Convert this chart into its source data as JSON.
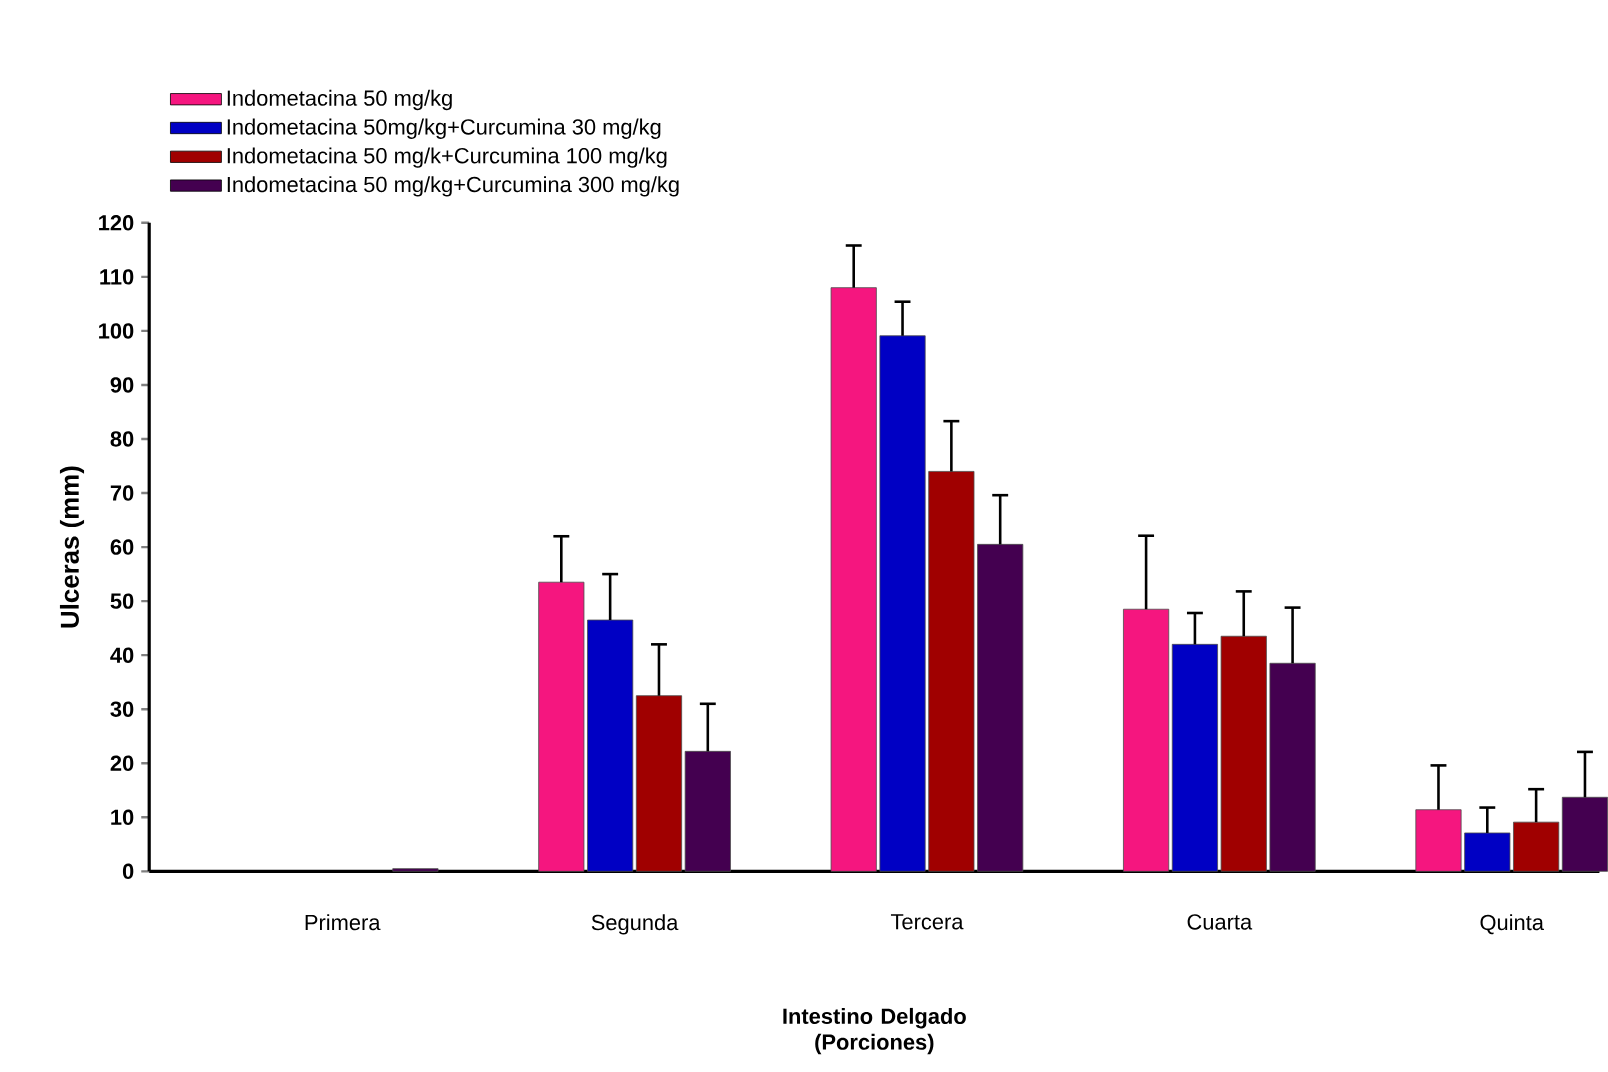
{
  "chart_data": {
    "type": "bar",
    "xlabel": "Intestino Delgado\n(Porciones)",
    "ylabel": "Ulceras (mm)",
    "categories": [
      "Primera",
      "Segunda",
      "Tercera",
      "Cuarta",
      "Quinta"
    ],
    "series": [
      {
        "name": "Indometacina 50 mg/kg",
        "color": "#f5167f",
        "values": [
          null,
          53.5,
          108,
          48.5,
          11.4
        ],
        "errors": [
          null,
          [
            53.5,
            62
          ],
          [
            108,
            115.8
          ],
          [
            48.5,
            62.1
          ],
          [
            11.4,
            19.6
          ]
        ]
      },
      {
        "name": "Indometacina 50mg/kg+Curcumina 30 mg/kg",
        "color": "#0000c4",
        "values": [
          null,
          46.5,
          99.1,
          42,
          7.1
        ],
        "errors": [
          null,
          [
            46.5,
            55
          ],
          [
            99.1,
            105.4
          ],
          [
            42,
            47.8
          ],
          [
            7.1,
            11.8
          ]
        ]
      },
      {
        "name": "Indometacina 50 mg/k+Curcumina 100 mg/kg",
        "color": "#a00000",
        "values": [
          null,
          32.5,
          74,
          43.5,
          9.1
        ],
        "errors": [
          null,
          [
            32.5,
            42
          ],
          [
            74,
            83.3
          ],
          [
            43.5,
            51.8
          ],
          [
            9.1,
            15.2
          ]
        ]
      },
      {
        "name": "Indometacina 50 mg/kg+Curcumina 300 mg/kg",
        "color": "#440050",
        "values": [
          0.5,
          22.2,
          60.5,
          38.5,
          13.7
        ],
        "errors": [
          null,
          [
            22.2,
            31
          ],
          [
            60.5,
            69.6
          ],
          [
            38.5,
            48.8
          ],
          [
            13.7,
            22.1
          ]
        ]
      }
    ],
    "ylim": [
      0,
      120
    ],
    "yticks": [
      0,
      10,
      20,
      30,
      40,
      50,
      60,
      70,
      80,
      90,
      100,
      110,
      120
    ],
    "legend": "top left",
    "grid": false
  }
}
